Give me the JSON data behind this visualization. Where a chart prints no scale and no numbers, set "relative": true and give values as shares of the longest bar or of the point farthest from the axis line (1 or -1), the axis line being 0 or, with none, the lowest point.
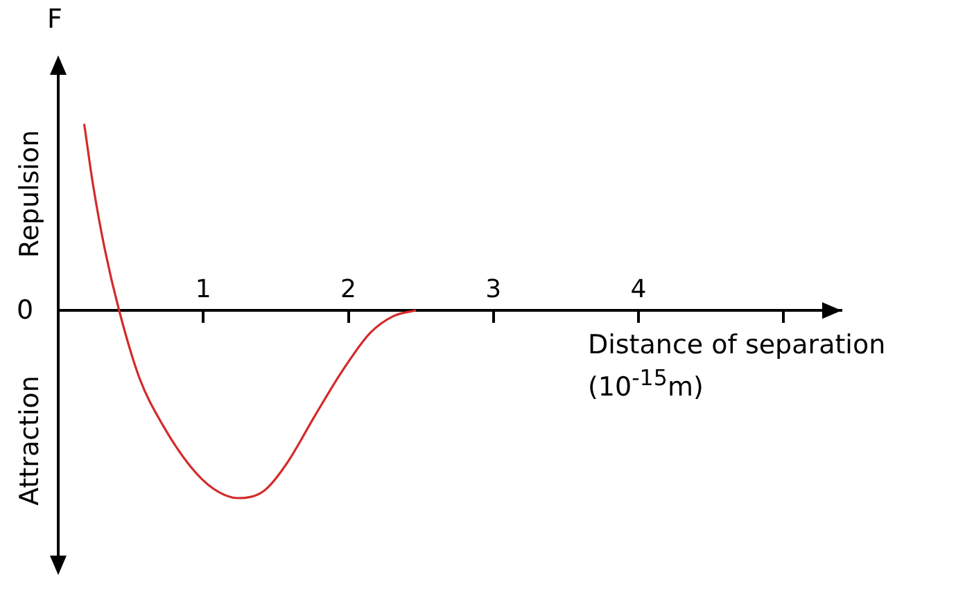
{
  "chart_data": {
    "type": "line",
    "relative": true,
    "ylabel": "F",
    "xlabel": "Distance of separation\n(10$^{-15}$m)",
    "annotations": [
      "Repulsion",
      "Attraction",
      "0"
    ],
    "xlim": [
      0,
      5.4
    ],
    "xticks": [
      1,
      2,
      3,
      4,
      {
        "value": 5,
        "label": null
      }
    ],
    "grid": false,
    "legend": false,
    "marker": "none",
    "line_style": "solid",
    "series": [
      {
        "color": "#d42a2a",
        "x": [
          0.18,
          0.24,
          0.32,
          0.42,
          0.56,
          0.72,
          0.91,
          1.07,
          1.24,
          1.42,
          1.58,
          1.77,
          1.96,
          2.15,
          2.31,
          2.46
        ],
        "values": [
          0.99,
          0.67,
          0.33,
          0,
          -0.36,
          -0.61,
          -0.83,
          -0.95,
          -1,
          -0.96,
          -0.81,
          -0.56,
          -0.32,
          -0.12,
          -0.03,
          0
        ]
      }
    ]
  }
}
